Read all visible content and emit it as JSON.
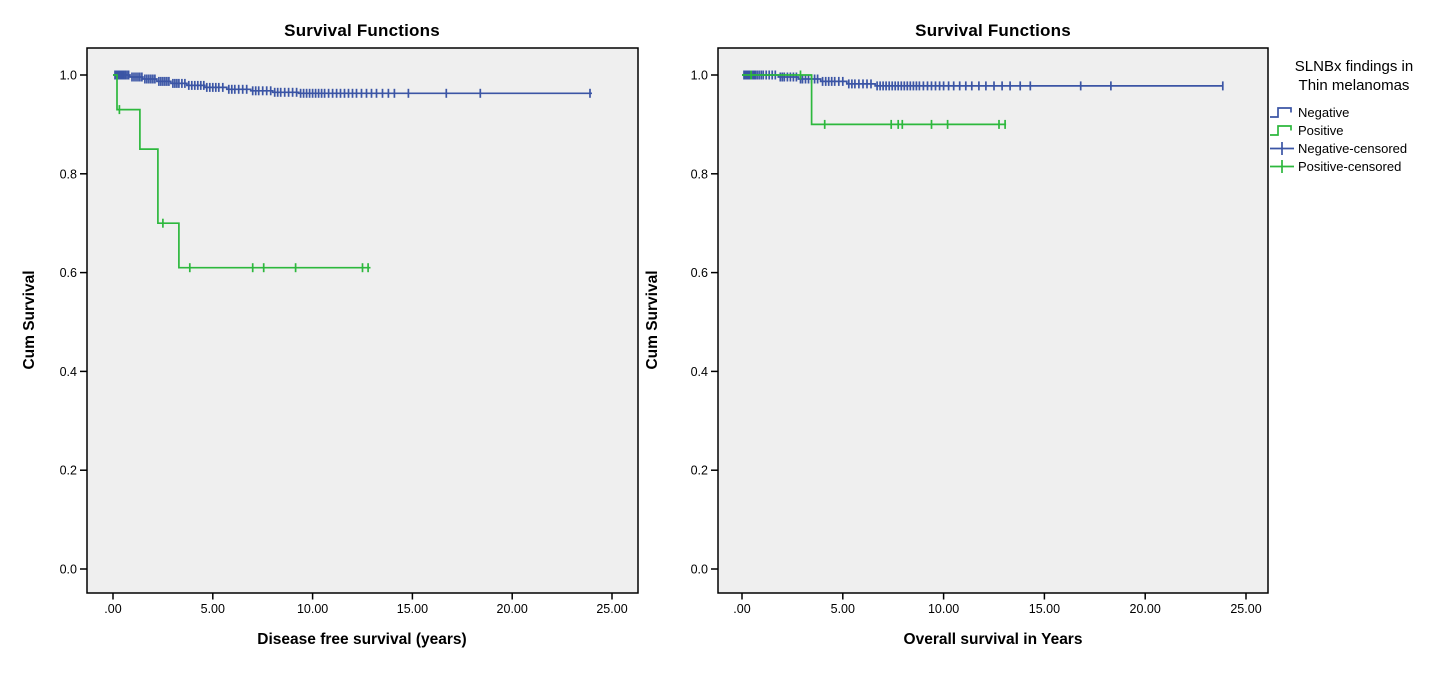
{
  "colors": {
    "negative": "#3B55A5",
    "positive": "#2DB83D",
    "plot_background": "#EFEFEF",
    "axis": "#000000",
    "page_background": "#FFFFFF"
  },
  "legend": {
    "title_line1": "SLNBx findings in",
    "title_line2": "Thin melanomas",
    "items": [
      {
        "label": "Negative",
        "color": "#3B55A5",
        "marker": "step-line"
      },
      {
        "label": "Positive",
        "color": "#2DB83D",
        "marker": "step-line"
      },
      {
        "label": "Negative-censored",
        "color": "#3B55A5",
        "marker": "plus-line"
      },
      {
        "label": "Positive-censored",
        "color": "#2DB83D",
        "marker": "plus-line"
      }
    ]
  },
  "chart_data": [
    {
      "type": "line",
      "variant": "kaplan_meier_step",
      "title": "Survival Functions",
      "xlabel": "Disease free survival (years)",
      "ylabel": "Cum Survival",
      "xlim": [
        -1.3,
        26.3
      ],
      "ylim": [
        -0.05,
        1.055
      ],
      "grid": false,
      "legend_position": "outside-right-of-second-chart",
      "xticks": {
        "values": [
          0,
          5,
          10,
          15,
          20,
          25
        ],
        "labels": [
          ".00",
          "5.00",
          "10.00",
          "15.00",
          "20.00",
          "25.00"
        ]
      },
      "yticks": {
        "values": [
          0,
          0.2,
          0.4,
          0.6,
          0.8,
          1.0
        ],
        "labels": [
          "0.0",
          "0.2",
          "0.4",
          "0.6",
          "0.8",
          "1.0"
        ]
      },
      "series": [
        {
          "name": "Negative",
          "color": "#3B55A5",
          "steps": [
            [
              0,
              1.0
            ],
            [
              0.85,
              0.996
            ],
            [
              1.5,
              0.992
            ],
            [
              2.2,
              0.987
            ],
            [
              2.9,
              0.983
            ],
            [
              3.7,
              0.979
            ],
            [
              4.6,
              0.975
            ],
            [
              5.7,
              0.971
            ],
            [
              6.9,
              0.968
            ],
            [
              8.0,
              0.965
            ],
            [
              9.3,
              0.963
            ]
          ],
          "end_t": 24.0,
          "censored": [
            [
              0.1,
              1
            ],
            [
              0.14,
              1
            ],
            [
              0.18,
              1
            ],
            [
              0.22,
              1
            ],
            [
              0.26,
              1
            ],
            [
              0.3,
              1
            ],
            [
              0.34,
              1
            ],
            [
              0.38,
              1
            ],
            [
              0.42,
              1
            ],
            [
              0.46,
              1
            ],
            [
              0.5,
              1
            ],
            [
              0.55,
              1
            ],
            [
              0.62,
              1
            ],
            [
              0.7,
              1
            ],
            [
              0.78,
              1
            ],
            [
              0.95,
              0.996
            ],
            [
              1.05,
              0.996
            ],
            [
              1.15,
              0.996
            ],
            [
              1.25,
              0.996
            ],
            [
              1.35,
              0.996
            ],
            [
              1.45,
              0.996
            ],
            [
              1.6,
              0.992
            ],
            [
              1.7,
              0.992
            ],
            [
              1.8,
              0.992
            ],
            [
              1.9,
              0.992
            ],
            [
              2.0,
              0.992
            ],
            [
              2.1,
              0.992
            ],
            [
              2.3,
              0.987
            ],
            [
              2.4,
              0.987
            ],
            [
              2.5,
              0.987
            ],
            [
              2.6,
              0.987
            ],
            [
              2.7,
              0.987
            ],
            [
              2.8,
              0.987
            ],
            [
              3.0,
              0.983
            ],
            [
              3.1,
              0.983
            ],
            [
              3.2,
              0.983
            ],
            [
              3.3,
              0.983
            ],
            [
              3.45,
              0.983
            ],
            [
              3.6,
              0.983
            ],
            [
              3.8,
              0.979
            ],
            [
              3.95,
              0.979
            ],
            [
              4.1,
              0.979
            ],
            [
              4.25,
              0.979
            ],
            [
              4.4,
              0.979
            ],
            [
              4.55,
              0.979
            ],
            [
              4.7,
              0.975
            ],
            [
              4.85,
              0.975
            ],
            [
              5.0,
              0.975
            ],
            [
              5.15,
              0.975
            ],
            [
              5.3,
              0.975
            ],
            [
              5.5,
              0.975
            ],
            [
              5.8,
              0.971
            ],
            [
              5.95,
              0.971
            ],
            [
              6.1,
              0.971
            ],
            [
              6.3,
              0.971
            ],
            [
              6.5,
              0.971
            ],
            [
              6.7,
              0.971
            ],
            [
              7.0,
              0.968
            ],
            [
              7.15,
              0.968
            ],
            [
              7.3,
              0.968
            ],
            [
              7.5,
              0.968
            ],
            [
              7.7,
              0.968
            ],
            [
              7.9,
              0.968
            ],
            [
              8.1,
              0.965
            ],
            [
              8.25,
              0.965
            ],
            [
              8.4,
              0.965
            ],
            [
              8.6,
              0.965
            ],
            [
              8.8,
              0.965
            ],
            [
              9.0,
              0.965
            ],
            [
              9.2,
              0.965
            ],
            [
              9.4,
              0.963
            ],
            [
              9.55,
              0.963
            ],
            [
              9.7,
              0.963
            ],
            [
              9.85,
              0.963
            ],
            [
              10.0,
              0.963
            ],
            [
              10.15,
              0.963
            ],
            [
              10.3,
              0.963
            ],
            [
              10.45,
              0.963
            ],
            [
              10.6,
              0.963
            ],
            [
              10.8,
              0.963
            ],
            [
              11.0,
              0.963
            ],
            [
              11.2,
              0.963
            ],
            [
              11.4,
              0.963
            ],
            [
              11.6,
              0.963
            ],
            [
              11.8,
              0.963
            ],
            [
              12.0,
              0.963
            ],
            [
              12.2,
              0.963
            ],
            [
              12.45,
              0.963
            ],
            [
              12.7,
              0.963
            ],
            [
              12.95,
              0.963
            ],
            [
              13.2,
              0.963
            ],
            [
              13.5,
              0.963
            ],
            [
              13.8,
              0.963
            ],
            [
              14.1,
              0.963
            ],
            [
              14.8,
              0.963
            ],
            [
              16.7,
              0.963
            ],
            [
              18.4,
              0.963
            ],
            [
              23.9,
              0.963
            ]
          ]
        },
        {
          "name": "Positive",
          "color": "#2DB83D",
          "steps": [
            [
              0,
              1.0
            ],
            [
              0.2,
              0.93
            ],
            [
              1.35,
              0.85
            ],
            [
              2.25,
              0.7
            ],
            [
              3.3,
              0.61
            ]
          ],
          "end_t": 12.9,
          "censored": [
            [
              0.32,
              0.93
            ],
            [
              2.5,
              0.7
            ],
            [
              3.85,
              0.61
            ],
            [
              7.0,
              0.61
            ],
            [
              7.55,
              0.61
            ],
            [
              9.15,
              0.61
            ],
            [
              12.5,
              0.61
            ],
            [
              12.78,
              0.61
            ]
          ]
        }
      ]
    },
    {
      "type": "line",
      "variant": "kaplan_meier_step",
      "title": "Survival Functions",
      "xlabel": "Overall survival in Years",
      "ylabel": "Cum Survival",
      "xlim": [
        -1.3,
        26.3
      ],
      "ylim": [
        -0.05,
        1.055
      ],
      "grid": false,
      "xticks": {
        "values": [
          0,
          5,
          10,
          15,
          20,
          25
        ],
        "labels": [
          ".00",
          "5.00",
          "10.00",
          "15.00",
          "20.00",
          "25.00"
        ]
      },
      "yticks": {
        "values": [
          0,
          0.2,
          0.4,
          0.6,
          0.8,
          1.0
        ],
        "labels": [
          "0.0",
          "0.2",
          "0.4",
          "0.6",
          "0.8",
          "1.0"
        ]
      },
      "series": [
        {
          "name": "Negative",
          "color": "#3B55A5",
          "steps": [
            [
              0,
              1.0
            ],
            [
              1.8,
              0.996
            ],
            [
              2.8,
              0.992
            ],
            [
              3.9,
              0.987
            ],
            [
              5.2,
              0.982
            ],
            [
              6.6,
              0.978
            ]
          ],
          "end_t": 23.85,
          "censored": [
            [
              0.1,
              1
            ],
            [
              0.14,
              1
            ],
            [
              0.18,
              1
            ],
            [
              0.22,
              1
            ],
            [
              0.26,
              1
            ],
            [
              0.3,
              1
            ],
            [
              0.35,
              1
            ],
            [
              0.4,
              1
            ],
            [
              0.45,
              1
            ],
            [
              0.5,
              1
            ],
            [
              0.58,
              1
            ],
            [
              0.66,
              1
            ],
            [
              0.75,
              1
            ],
            [
              0.85,
              1
            ],
            [
              0.95,
              1
            ],
            [
              1.05,
              1
            ],
            [
              1.2,
              1
            ],
            [
              1.35,
              1
            ],
            [
              1.5,
              1
            ],
            [
              1.65,
              1
            ],
            [
              1.9,
              0.996
            ],
            [
              2.0,
              0.996
            ],
            [
              2.1,
              0.996
            ],
            [
              2.25,
              0.996
            ],
            [
              2.4,
              0.996
            ],
            [
              2.55,
              0.996
            ],
            [
              2.7,
              0.996
            ],
            [
              2.9,
              0.992
            ],
            [
              3.0,
              0.992
            ],
            [
              3.15,
              0.992
            ],
            [
              3.3,
              0.992
            ],
            [
              3.45,
              0.992
            ],
            [
              3.6,
              0.992
            ],
            [
              3.75,
              0.992
            ],
            [
              4.0,
              0.987
            ],
            [
              4.15,
              0.987
            ],
            [
              4.3,
              0.987
            ],
            [
              4.45,
              0.987
            ],
            [
              4.6,
              0.987
            ],
            [
              4.8,
              0.987
            ],
            [
              5.0,
              0.987
            ],
            [
              5.3,
              0.982
            ],
            [
              5.45,
              0.982
            ],
            [
              5.6,
              0.982
            ],
            [
              5.8,
              0.982
            ],
            [
              6.0,
              0.982
            ],
            [
              6.2,
              0.982
            ],
            [
              6.4,
              0.982
            ],
            [
              6.7,
              0.978
            ],
            [
              6.85,
              0.978
            ],
            [
              7.0,
              0.978
            ],
            [
              7.15,
              0.978
            ],
            [
              7.3,
              0.978
            ],
            [
              7.45,
              0.978
            ],
            [
              7.6,
              0.978
            ],
            [
              7.75,
              0.978
            ],
            [
              7.9,
              0.978
            ],
            [
              8.05,
              0.978
            ],
            [
              8.2,
              0.978
            ],
            [
              8.35,
              0.978
            ],
            [
              8.5,
              0.978
            ],
            [
              8.65,
              0.978
            ],
            [
              8.8,
              0.978
            ],
            [
              9.0,
              0.978
            ],
            [
              9.2,
              0.978
            ],
            [
              9.4,
              0.978
            ],
            [
              9.6,
              0.978
            ],
            [
              9.8,
              0.978
            ],
            [
              10.0,
              0.978
            ],
            [
              10.25,
              0.978
            ],
            [
              10.5,
              0.978
            ],
            [
              10.8,
              0.978
            ],
            [
              11.1,
              0.978
            ],
            [
              11.4,
              0.978
            ],
            [
              11.75,
              0.978
            ],
            [
              12.1,
              0.978
            ],
            [
              12.5,
              0.978
            ],
            [
              12.9,
              0.978
            ],
            [
              13.3,
              0.978
            ],
            [
              13.8,
              0.978
            ],
            [
              14.3,
              0.978
            ],
            [
              16.8,
              0.978
            ],
            [
              18.3,
              0.978
            ],
            [
              23.85,
              0.978
            ]
          ]
        },
        {
          "name": "Positive",
          "color": "#2DB83D",
          "steps": [
            [
              0,
              1.0
            ],
            [
              3.45,
              0.9
            ]
          ],
          "end_t": 13.1,
          "censored": [
            [
              0.45,
              1.0
            ],
            [
              2.9,
              1.0
            ],
            [
              4.1,
              0.9
            ],
            [
              7.4,
              0.9
            ],
            [
              7.75,
              0.9
            ],
            [
              7.95,
              0.9
            ],
            [
              9.4,
              0.9
            ],
            [
              10.2,
              0.9
            ],
            [
              12.75,
              0.9
            ],
            [
              13.05,
              0.9
            ]
          ]
        }
      ]
    }
  ]
}
